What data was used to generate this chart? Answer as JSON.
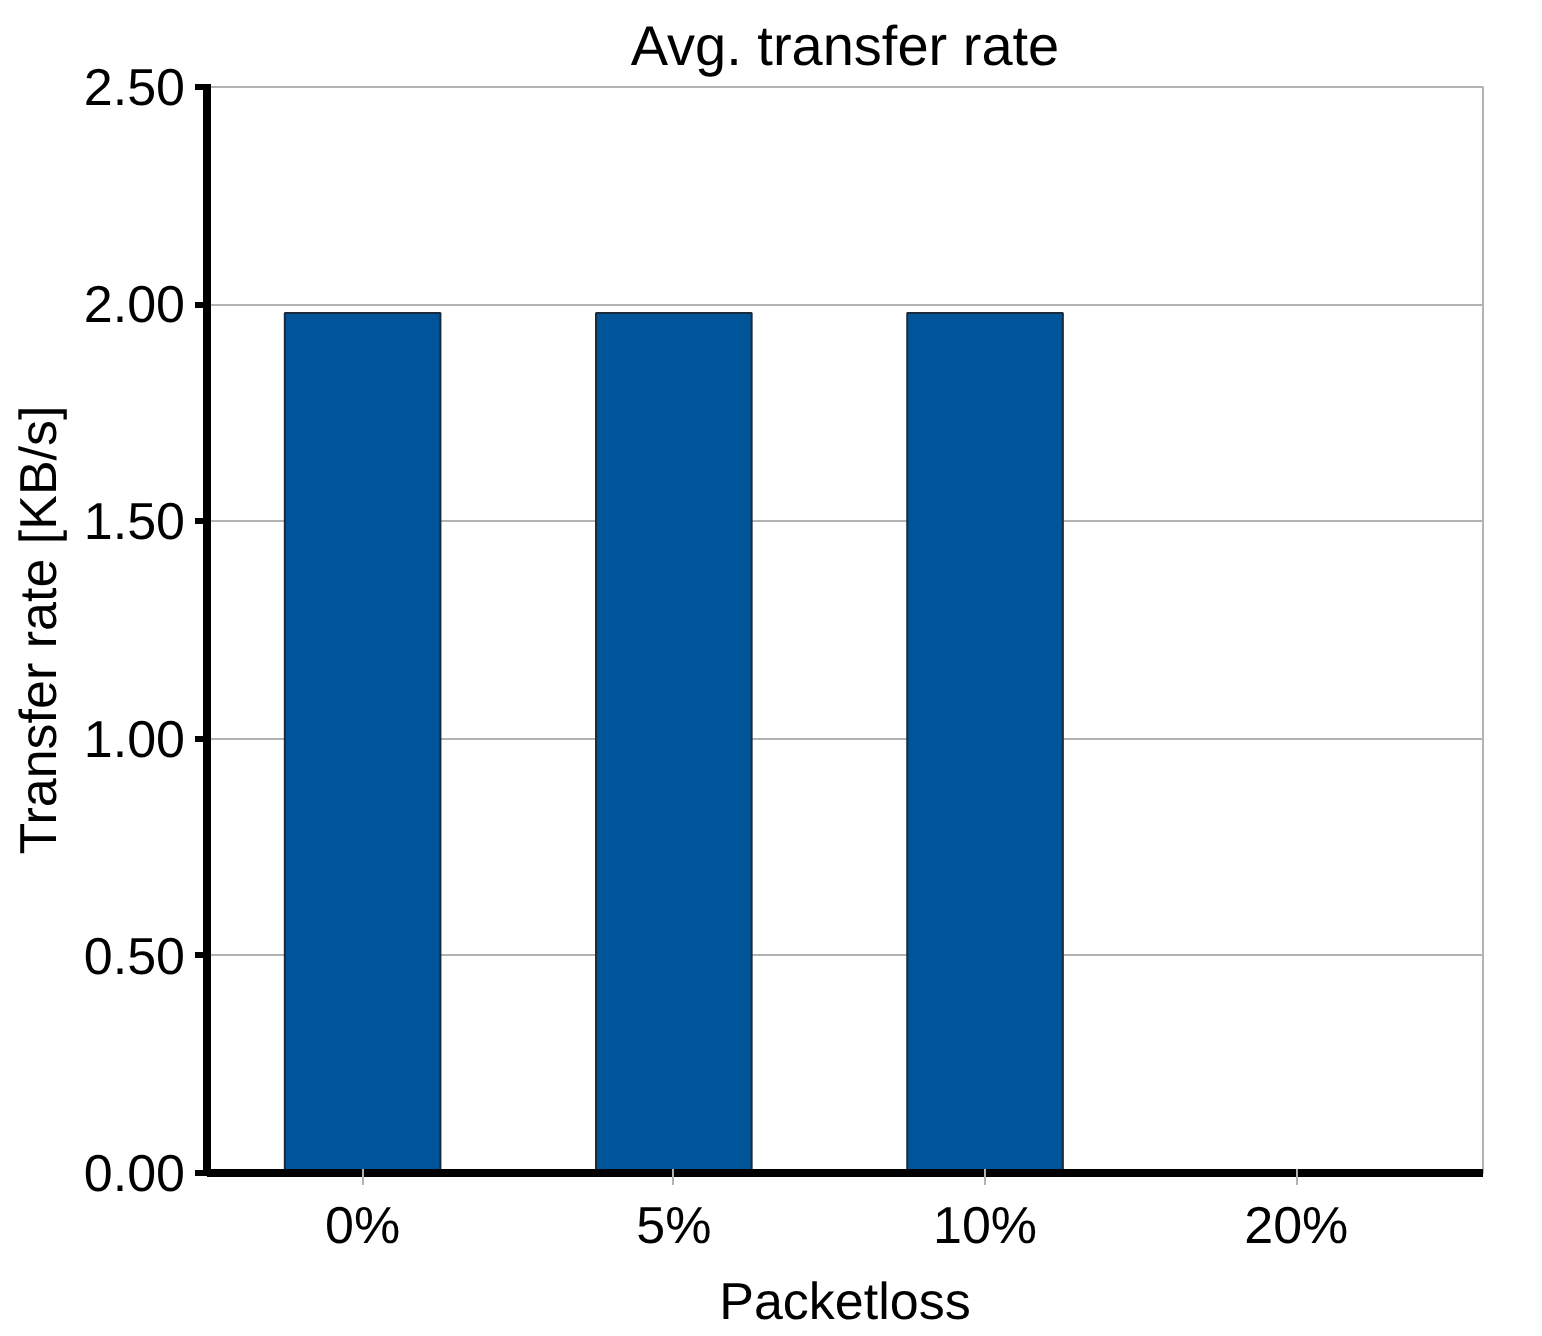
{
  "chart_data": {
    "type": "bar",
    "title": "Avg. transfer rate",
    "xlabel": "Packetloss",
    "ylabel": "Transfer rate [KB/s]",
    "categories": [
      "0%",
      "5%",
      "10%",
      "20%"
    ],
    "values": [
      1.98,
      1.98,
      1.98,
      null
    ],
    "color": "#00559a",
    "ylim": [
      0,
      2.5
    ],
    "yticks": [
      {
        "value": 0,
        "label": "0.00"
      },
      {
        "value": 0.5,
        "label": "0.50"
      },
      {
        "value": 1,
        "label": "1.00"
      },
      {
        "value": 1.5,
        "label": "1.50"
      },
      {
        "value": 2,
        "label": "2.00"
      },
      {
        "value": 2.5,
        "label": "2.50"
      }
    ],
    "grid": "y"
  }
}
